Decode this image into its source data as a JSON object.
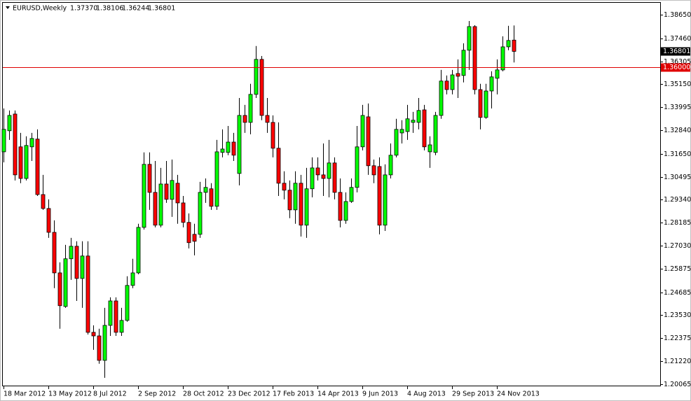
{
  "chart_data": {
    "type": "candlestick",
    "header": {
      "symbol": "EURUSD,Weekly",
      "values": [
        "1.37370",
        "1.38106",
        "1.36244",
        "1.36801"
      ]
    },
    "categories": [
      "18 Mar 2012",
      null,
      null,
      null,
      null,
      null,
      null,
      null,
      "13 May 2012",
      null,
      null,
      null,
      null,
      null,
      null,
      null,
      "8 Jul 2012",
      null,
      null,
      null,
      null,
      null,
      null,
      null,
      "2 Sep 2012",
      null,
      null,
      null,
      null,
      null,
      null,
      null,
      "28 Oct 2012",
      null,
      null,
      null,
      null,
      null,
      null,
      null,
      "23 Dec 2012",
      null,
      null,
      null,
      null,
      null,
      null,
      null,
      "17 Feb 2013",
      null,
      null,
      null,
      null,
      null,
      null,
      null,
      "14 Apr 2013",
      null,
      null,
      null,
      null,
      null,
      null,
      null,
      "9 Jun 2013",
      null,
      null,
      null,
      null,
      null,
      null,
      null,
      "4 Aug 2013",
      null,
      null,
      null,
      null,
      null,
      null,
      null,
      "29 Sep 2013",
      null,
      null,
      null,
      null,
      null,
      null,
      null,
      "24 Nov 2013",
      null,
      null,
      null
    ],
    "open": [
      1.3175,
      1.3281,
      1.3365,
      1.32,
      1.3041,
      1.32,
      1.3239,
      1.296,
      1.289,
      1.277,
      1.2566,
      1.2397,
      1.2637,
      1.27,
      1.2538,
      1.2651,
      1.2267,
      1.2249,
      1.2126,
      1.2302,
      1.2425,
      1.2267,
      1.2327,
      1.2503,
      1.2566,
      1.2795,
      1.3112,
      1.2971,
      1.2806,
      1.3013,
      1.2936,
      1.3017,
      1.2918,
      1.282,
      1.276,
      1.276,
      1.2971,
      1.2989,
      1.2901,
      1.3172,
      1.3172,
      1.3224,
      1.3066,
      1.3358,
      1.3323,
      1.3464,
      1.364,
      1.3358,
      1.3323,
      1.3193,
      1.3017,
      1.2982,
      1.2883,
      1.3017,
      1.2806,
      1.2989,
      1.3094,
      1.3059,
      1.3041,
      1.3119,
      1.2971,
      1.283,
      1.2925,
      1.2996,
      1.32,
      1.3351,
      1.3105,
      1.3101,
      1.2806,
      1.3059,
      1.3158,
      1.327,
      1.3277,
      1.3323,
      1.3323,
      1.3386,
      1.3175,
      1.3172,
      1.3358,
      1.3531,
      1.3488,
      1.3569,
      1.3559,
      1.3686,
      1.3805,
      1.3488,
      1.3348,
      1.3481,
      1.3545,
      1.3587,
      1.3703,
      1.3737
    ],
    "high": [
      1.3393,
      1.3383,
      1.3383,
      1.327,
      1.3253,
      1.327,
      1.3288,
      1.3059,
      1.2936,
      1.283,
      1.2619,
      1.2707,
      1.2742,
      1.2725,
      1.2725,
      1.2725,
      1.2302,
      1.2285,
      1.239,
      1.2443,
      1.2443,
      1.239,
      1.2549,
      1.2637,
      1.2813,
      1.3172,
      1.3172,
      1.3129,
      1.3094,
      1.3129,
      1.3136,
      1.3059,
      1.2953,
      1.2865,
      1.2813,
      1.3024,
      1.3041,
      1.3017,
      1.3235,
      1.3288,
      1.3305,
      1.327,
      1.3446,
      1.3411,
      1.3517,
      1.3707,
      1.3657,
      1.3446,
      1.3358,
      1.3323,
      1.3077,
      1.3031,
      1.3077,
      1.3059,
      1.3094,
      1.3147,
      1.3147,
      1.3217,
      1.3235,
      1.3147,
      1.3041,
      1.2971,
      1.3041,
      1.3305,
      1.3411,
      1.3418,
      1.3136,
      1.3147,
      1.3112,
      1.3217,
      1.3341,
      1.3334,
      1.3411,
      1.3376,
      1.3446,
      1.3411,
      1.3253,
      1.3376,
      1.3587,
      1.3559,
      1.3587,
      1.364,
      1.3721,
      1.3833,
      1.3812,
      1.3517,
      1.3517,
      1.358,
      1.364,
      1.3756,
      1.3809,
      1.38106
    ],
    "low": [
      1.3122,
      1.3235,
      1.3031,
      1.3017,
      1.3031,
      1.3129,
      1.2953,
      1.2883,
      1.2742,
      1.2489,
      1.2285,
      1.239,
      1.2531,
      1.2425,
      1.239,
      1.2256,
      1.2179,
      1.2109,
      1.2038,
      1.2249,
      1.2249,
      1.2249,
      1.232,
      1.2489,
      1.2559,
      1.2784,
      1.2883,
      1.2795,
      1.2795,
      1.2918,
      1.2848,
      1.2813,
      1.2795,
      1.2689,
      1.2654,
      1.2742,
      1.2918,
      1.2883,
      1.2883,
      1.3147,
      1.3158,
      1.3129,
      1.3006,
      1.327,
      1.3263,
      1.3446,
      1.3334,
      1.327,
      1.3147,
      1.2953,
      1.2936,
      1.2841,
      1.2813,
      1.2749,
      1.2742,
      1.2946,
      1.3031,
      1.2953,
      1.2946,
      1.2936,
      1.2795,
      1.2813,
      1.2918,
      1.2971,
      1.3182,
      1.3059,
      1.3017,
      1.276,
      1.2777,
      1.3041,
      1.3147,
      1.3217,
      1.3235,
      1.327,
      1.3288,
      1.3182,
      1.3094,
      1.3158,
      1.3341,
      1.3464,
      1.3464,
      1.3446,
      1.3524,
      1.3587,
      1.3464,
      1.3288,
      1.3341,
      1.3393,
      1.3464,
      1.358,
      1.3686,
      1.36244
    ],
    "close": [
      1.3288,
      1.3358,
      1.3059,
      1.3041,
      1.3207,
      1.3242,
      1.296,
      1.289,
      1.277,
      1.2566,
      1.2401,
      1.2637,
      1.27,
      1.2538,
      1.2651,
      1.2267,
      1.2249,
      1.2126,
      1.2302,
      1.2425,
      1.2267,
      1.2327,
      1.2503,
      1.2566,
      1.2795,
      1.3112,
      1.2971,
      1.2806,
      1.3013,
      1.2936,
      1.3031,
      1.2918,
      1.282,
      1.2718,
      1.2725,
      1.2971,
      1.2996,
      1.2901,
      1.3175,
      1.3189,
      1.3224,
      1.3158,
      1.3358,
      1.3323,
      1.3464,
      1.364,
      1.3358,
      1.3323,
      1.3193,
      1.3017,
      1.2982,
      1.2883,
      1.3017,
      1.2806,
      1.2989,
      1.3094,
      1.3059,
      1.3041,
      1.3119,
      1.2971,
      1.283,
      1.2925,
      1.2996,
      1.32,
      1.3358,
      1.3105,
      1.3059,
      1.2806,
      1.3059,
      1.3158,
      1.3288,
      1.3288,
      1.3341,
      1.3334,
      1.3383,
      1.32,
      1.321,
      1.3358,
      1.3531,
      1.3488,
      1.3562,
      1.3555,
      1.3686,
      1.3805,
      1.3488,
      1.3348,
      1.3481,
      1.3552,
      1.3587,
      1.3703,
      1.3735,
      1.36801
    ],
    "up_color": "#00ff00",
    "down_color": "#ff0000",
    "wick_color": "#000000",
    "ylim": [
      1.1999,
      1.3921
    ],
    "yticks": [
      {
        "value": 1.3865,
        "label": "1.38650"
      },
      {
        "value": 1.3746,
        "label": "1.37460"
      },
      {
        "value": 1.36305,
        "label": "1.36305"
      },
      {
        "value": 1.3515,
        "label": "1.35150"
      },
      {
        "value": 1.33995,
        "label": "1.33995"
      },
      {
        "value": 1.3284,
        "label": "1.32840"
      },
      {
        "value": 1.3165,
        "label": "1.31650"
      },
      {
        "value": 1.30495,
        "label": "1.30495"
      },
      {
        "value": 1.2934,
        "label": "1.29340"
      },
      {
        "value": 1.28185,
        "label": "1.28185"
      },
      {
        "value": 1.2703,
        "label": "1.27030"
      },
      {
        "value": 1.25875,
        "label": "1.25875"
      },
      {
        "value": 1.24685,
        "label": "1.24685"
      },
      {
        "value": 1.2353,
        "label": "1.23530"
      },
      {
        "value": 1.22375,
        "label": "1.22375"
      },
      {
        "value": 1.2122,
        "label": "1.21220"
      },
      {
        "value": 1.20065,
        "label": "1.20065"
      }
    ],
    "price_line": {
      "value": 1.36,
      "label": "1.36000",
      "color": "#e00000"
    },
    "last_price": {
      "value": 1.36801,
      "label": "1.36801"
    }
  }
}
